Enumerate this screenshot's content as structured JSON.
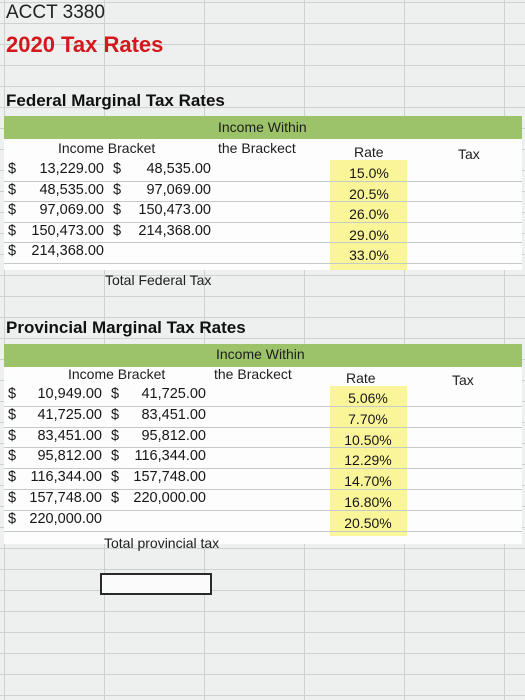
{
  "sheet": {
    "course": "ACCT 3380",
    "title": "2020 Tax Rates"
  },
  "federal": {
    "heading": "Federal Marginal Tax Rates",
    "col_bracket": "Income Bracket",
    "col_within_1": "Income Within",
    "col_within_2": "the Brackect",
    "col_rate": "Rate",
    "col_tax": "Tax",
    "rows": [
      {
        "low": "13,229.00",
        "high": "48,535.00",
        "rate": "15.0%"
      },
      {
        "low": "48,535.00",
        "high": "97,069.00",
        "rate": "20.5%"
      },
      {
        "low": "97,069.00",
        "high": "150,473.00",
        "rate": "26.0%"
      },
      {
        "low": "150,473.00",
        "high": "214,368.00",
        "rate": "29.0%"
      },
      {
        "low": "214,368.00",
        "high": "",
        "rate": "33.0%"
      }
    ],
    "total_label": "Total Federal Tax"
  },
  "provincial": {
    "heading": "Provincial Marginal Tax Rates",
    "col_bracket": "Income Bracket",
    "col_within_1": "Income Within",
    "col_within_2": "the Brackect",
    "col_rate": "Rate",
    "col_tax": "Tax",
    "rows": [
      {
        "low": "10,949.00",
        "high": "41,725.00",
        "rate": "5.06%"
      },
      {
        "low": "41,725.00",
        "high": "83,451.00",
        "rate": "7.70%"
      },
      {
        "low": "83,451.00",
        "high": "95,812.00",
        "rate": "10.50%"
      },
      {
        "low": "95,812.00",
        "high": "116,344.00",
        "rate": "12.29%"
      },
      {
        "low": "116,344.00",
        "high": "157,748.00",
        "rate": "14.70%"
      },
      {
        "low": "157,748.00",
        "high": "220,000.00",
        "rate": "16.80%"
      },
      {
        "low": "220,000.00",
        "high": "",
        "rate": "20.50%"
      }
    ],
    "total_label": "Total provincial tax"
  },
  "currency_symbol": "$",
  "colors": {
    "title_red": "#d3181e",
    "header_green": "#9dc36a",
    "rate_yellow": "#fbf59a"
  }
}
